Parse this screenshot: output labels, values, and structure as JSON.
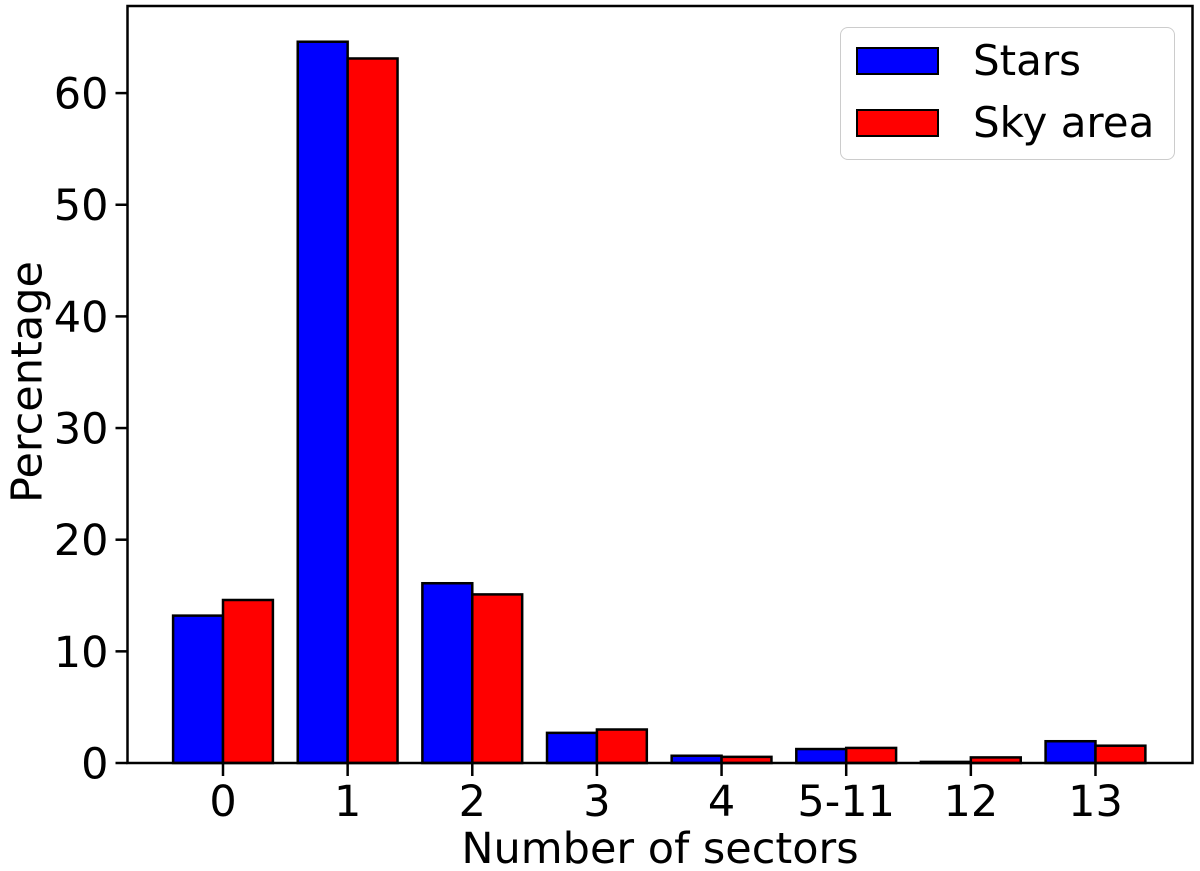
{
  "figure": {
    "background_color": "#ffffff",
    "text_color": "#000000"
  },
  "chart_data": {
    "type": "bar",
    "title": "",
    "xlabel": "Number of sectors",
    "ylabel": "Percentage",
    "categories": [
      "0",
      "1",
      "2",
      "3",
      "4",
      "5-11",
      "12",
      "13"
    ],
    "series": [
      {
        "name": "Stars",
        "color": "#0000ff",
        "values": [
          13.2,
          64.6,
          16.1,
          2.7,
          0.65,
          1.25,
          0.1,
          1.95
        ]
      },
      {
        "name": "Sky area",
        "color": "#ff0000",
        "values": [
          14.6,
          63.1,
          15.1,
          3.0,
          0.55,
          1.35,
          0.5,
          1.55
        ]
      }
    ],
    "yticks": [
      0,
      10,
      20,
      30,
      40,
      50,
      60
    ],
    "ylim": [
      0,
      67.8
    ],
    "bar_edge_color": "#000000",
    "axis_color": "#000000",
    "legend_position": "upper right",
    "legend_border_color": "#cccccc",
    "grid": false
  }
}
